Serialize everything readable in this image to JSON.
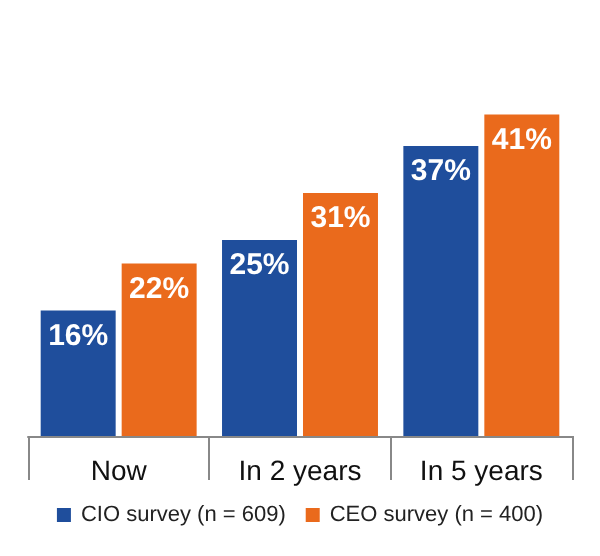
{
  "chart_data": {
    "type": "bar",
    "categories": [
      "Now",
      "In 2 years",
      "In 5 years"
    ],
    "series": [
      {
        "name": "CIO survey (n = 609)",
        "color": "#1f4e9c",
        "values": [
          16,
          25,
          37
        ],
        "value_labels": [
          "16%",
          "25%",
          "37%"
        ]
      },
      {
        "name": "CEO survey (n = 400)",
        "color": "#ea6a1c",
        "values": [
          22,
          31,
          41
        ],
        "value_labels": [
          "22%",
          "31%",
          "41%"
        ]
      }
    ],
    "legend": "bottom",
    "grid": false
  }
}
